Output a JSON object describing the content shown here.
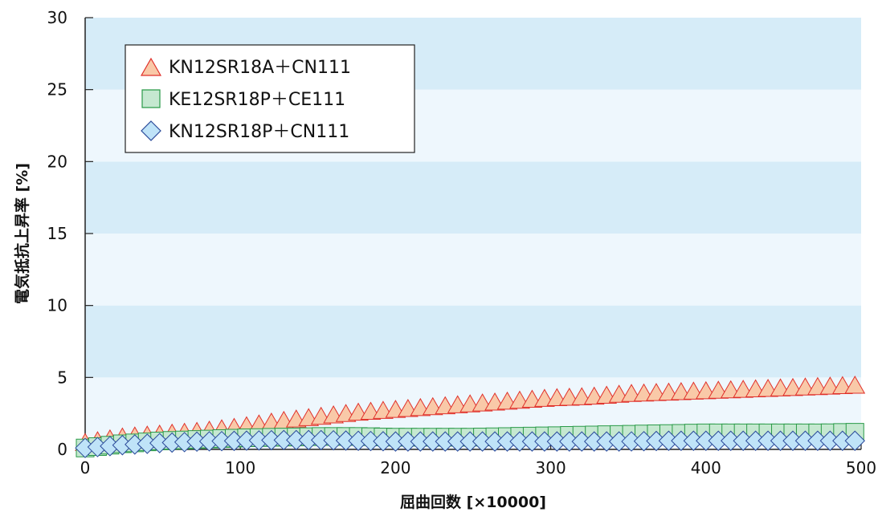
{
  "chart_data": {
    "type": "line",
    "title": "",
    "xlabel": "屈曲回数 [×10000]",
    "ylabel": "電気抵抗上昇率 [%]",
    "xlim": [
      0,
      500
    ],
    "ylim": [
      0,
      30
    ],
    "x_ticks": [
      "0",
      "100",
      "200",
      "300",
      "400",
      "500"
    ],
    "y_ticks": [
      "0",
      "5",
      "10",
      "15",
      "20",
      "25",
      "30"
    ],
    "background_bands": [
      "#d6ecf8",
      "#eef7fd"
    ],
    "legend_position": "top-left",
    "series": [
      {
        "name": "KN12SR18A＋CN111",
        "marker": "triangle",
        "fill": "#f9c9a8",
        "stroke": "#e0302a",
        "x": [
          0,
          25,
          50,
          75,
          100,
          125,
          150,
          175,
          200,
          225,
          250,
          275,
          300,
          325,
          350,
          375,
          400,
          425,
          450,
          475,
          500
        ],
        "y": [
          0.2,
          0.6,
          0.8,
          1.0,
          1.3,
          1.7,
          2.0,
          2.3,
          2.5,
          2.7,
          2.9,
          3.1,
          3.3,
          3.4,
          3.6,
          3.7,
          3.8,
          3.9,
          4.0,
          4.1,
          4.2
        ]
      },
      {
        "name": "KE12SR18P＋CE111",
        "marker": "square",
        "fill": "#c5e8d0",
        "stroke": "#2a9a48",
        "x": [
          0,
          25,
          50,
          75,
          100,
          125,
          150,
          175,
          200,
          225,
          250,
          275,
          300,
          325,
          350,
          375,
          400,
          425,
          450,
          475,
          500
        ],
        "y": [
          0.1,
          0.4,
          0.6,
          0.7,
          0.8,
          0.85,
          0.9,
          0.9,
          0.85,
          0.85,
          0.85,
          0.9,
          0.95,
          1.0,
          1.05,
          1.1,
          1.15,
          1.15,
          1.15,
          1.15,
          1.2
        ]
      },
      {
        "name": "KN12SR18P＋CN111",
        "marker": "diamond",
        "fill": "#bfe3f8",
        "stroke": "#2a4a9a",
        "x": [
          0,
          25,
          50,
          75,
          100,
          125,
          150,
          175,
          200,
          225,
          250,
          275,
          300,
          325,
          350,
          375,
          400,
          425,
          450,
          475,
          500
        ],
        "y": [
          0.1,
          0.3,
          0.45,
          0.55,
          0.6,
          0.65,
          0.65,
          0.6,
          0.55,
          0.55,
          0.55,
          0.55,
          0.55,
          0.55,
          0.55,
          0.6,
          0.6,
          0.6,
          0.6,
          0.6,
          0.6
        ]
      }
    ]
  }
}
